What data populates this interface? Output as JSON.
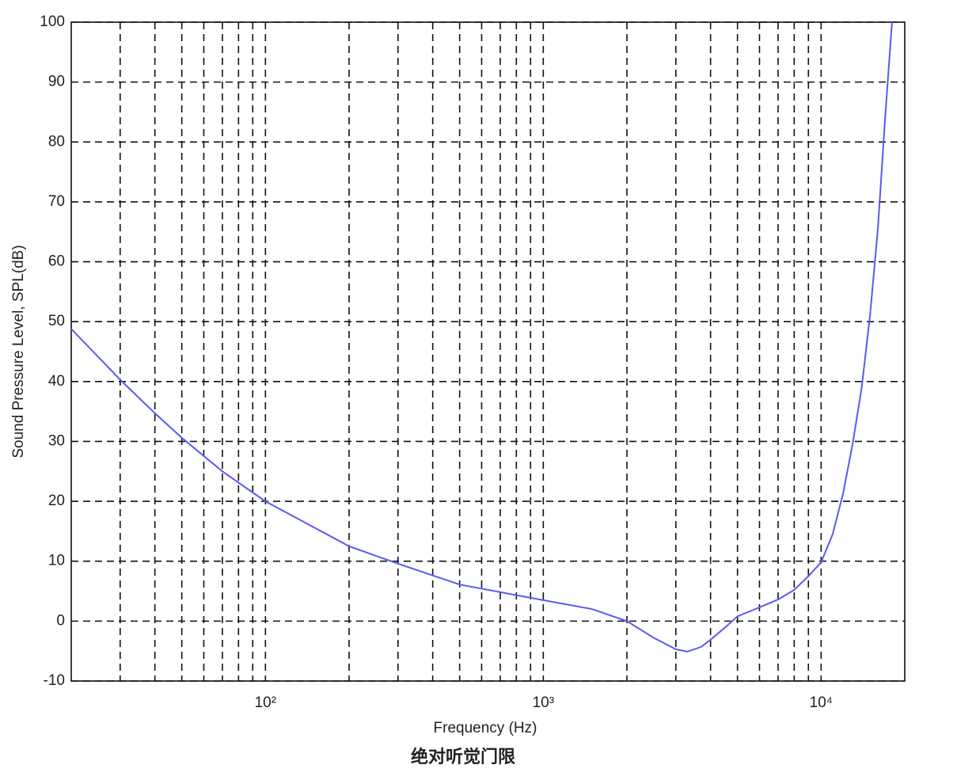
{
  "chart_data": {
    "type": "line",
    "title": "绝对听觉门限",
    "xlabel": "Frequency (Hz)",
    "ylabel": "Sound Pressure Level, SPL(dB)",
    "xscale": "log",
    "grid": true,
    "xlim": [
      20,
      20000
    ],
    "ylim": [
      -10,
      100
    ],
    "xticks": [
      {
        "value": 100,
        "label": "10²"
      },
      {
        "value": 1000,
        "label": "10³"
      },
      {
        "value": 10000,
        "label": "10⁴"
      }
    ],
    "xminorticks": [
      30,
      40,
      50,
      60,
      70,
      80,
      90,
      200,
      300,
      400,
      500,
      600,
      700,
      800,
      900,
      2000,
      3000,
      4000,
      5000,
      6000,
      7000,
      8000,
      9000
    ],
    "yticks": [
      -10,
      0,
      10,
      20,
      30,
      40,
      50,
      60,
      70,
      80,
      90,
      100
    ],
    "x": [
      20,
      30,
      40,
      50,
      70,
      100,
      200,
      300,
      500,
      1000,
      1500,
      2000,
      2500,
      3000,
      3300,
      3700,
      4000,
      4500,
      5000,
      6000,
      7000,
      8000,
      9000,
      10000,
      11000,
      12000,
      13000,
      14000,
      15000,
      16000,
      17000,
      18000
    ],
    "series": [
      {
        "color": "#5a5af0",
        "values": [
          48.8,
          40.3,
          34.7,
          30.6,
          25,
          20,
          12.5,
          9.6,
          6.1,
          3.5,
          2,
          0,
          -2.8,
          -4.7,
          -5.1,
          -4.3,
          -3.1,
          -1.1,
          0.8,
          2.3,
          3.6,
          5.2,
          7.5,
          9.8,
          14.5,
          21.3,
          29.7,
          39,
          51,
          65.4,
          84,
          100
        ]
      }
    ]
  }
}
